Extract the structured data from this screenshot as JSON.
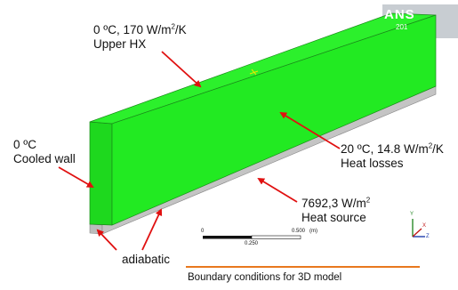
{
  "logo": {
    "text": "ANS",
    "year": "201"
  },
  "labels": {
    "upper_line1": "0 ºC, 170 W/m",
    "upper_line1_sup": "2",
    "upper_line1_end": "/K",
    "upper_line2": "Upper HX",
    "cooled_line1": "0 ºC",
    "cooled_line2": "Cooled wall",
    "losses_line1": "20 ºC, 14.8 W/m",
    "losses_line1_sup": "2",
    "losses_line1_end": "/K",
    "losses_line2": "Heat losses",
    "source_line1": "7692,3 W/m",
    "source_line1_sup": "2",
    "source_line2": "Heat source",
    "adiabatic": "adiabatic"
  },
  "scale_bar": {
    "tick_0": "0",
    "tick_mid": "0.250",
    "tick_end": "0.500",
    "unit": "(m)"
  },
  "axes": {
    "y": "Y",
    "z": "Z",
    "x": "X"
  },
  "caption": "Boundary conditions for 3D model",
  "colors": {
    "box_green": "#22ee22",
    "plate_gray": "#c0c0c0",
    "arrow_red": "#e01010",
    "caption_rule": "#e8781e"
  }
}
